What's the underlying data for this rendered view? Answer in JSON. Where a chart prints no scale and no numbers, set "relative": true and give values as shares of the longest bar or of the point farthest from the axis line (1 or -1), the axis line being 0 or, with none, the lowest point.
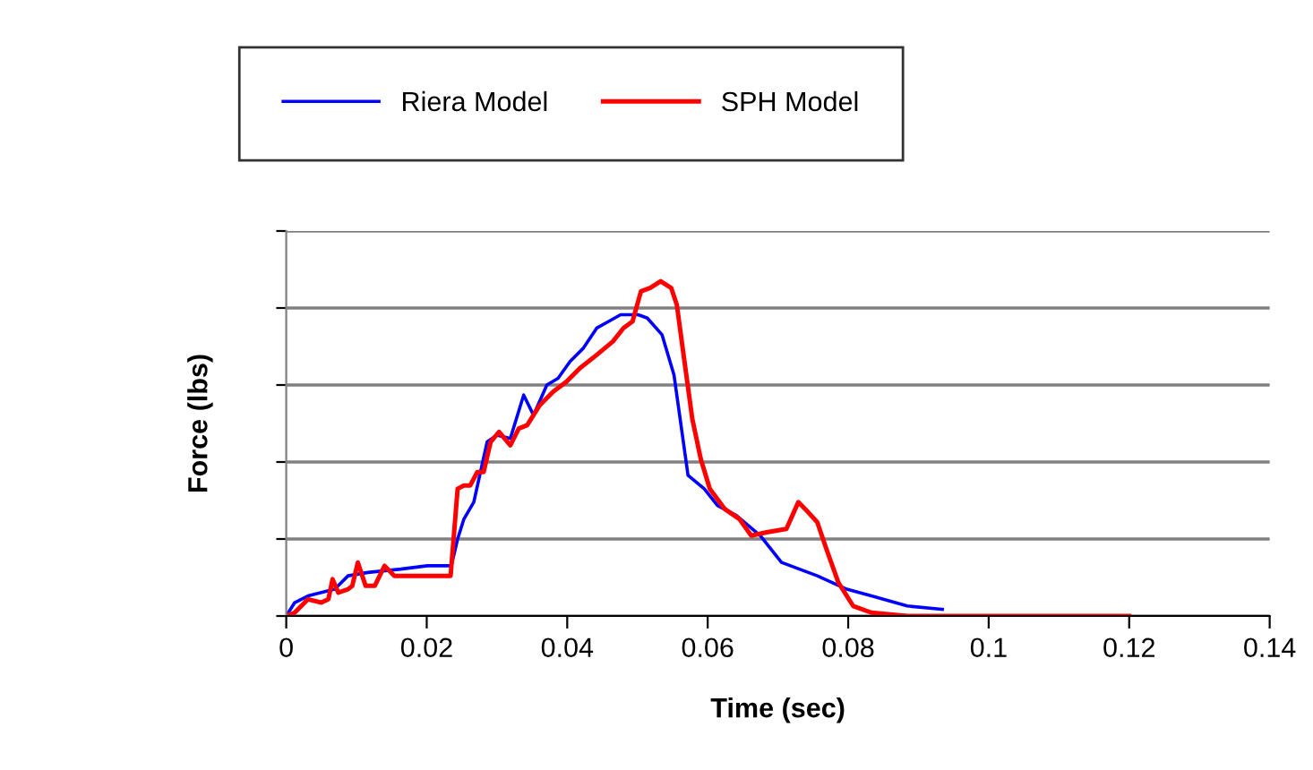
{
  "chart_data": {
    "type": "line",
    "relative": true,
    "xlabel": "Time (sec)",
    "ylabel": "Force (lbs)",
    "xlim": [
      0,
      0.14
    ],
    "xticks": [
      0,
      0.02,
      0.04,
      0.06,
      0.08,
      0.1,
      0.12,
      0.14
    ],
    "grid": "y",
    "legend": "top",
    "marker": "none",
    "line_style": "solid",
    "series": [
      {
        "name": "Riera Model",
        "color": "#0000ff",
        "x": [
          0,
          0.0012,
          0.0031,
          0.0069,
          0.0088,
          0.0116,
          0.0163,
          0.0201,
          0.0235,
          0.0244,
          0.0253,
          0.0267,
          0.0286,
          0.03,
          0.0319,
          0.0338,
          0.0352,
          0.0371,
          0.0387,
          0.0404,
          0.0423,
          0.0442,
          0.0459,
          0.0476,
          0.0501,
          0.0514,
          0.0535,
          0.0552,
          0.0572,
          0.0595,
          0.0614,
          0.0641,
          0.0675,
          0.0705,
          0.0756,
          0.0798,
          0.0833,
          0.0884,
          0.0934
        ],
        "values": [
          0,
          0.04,
          0.06,
          0.08,
          0.12,
          0.13,
          0.14,
          0.15,
          0.15,
          0.23,
          0.29,
          0.34,
          0.52,
          0.54,
          0.53,
          0.66,
          0.6,
          0.69,
          0.71,
          0.76,
          0.8,
          0.86,
          0.88,
          0.9,
          0.9,
          0.89,
          0.84,
          0.72,
          0.42,
          0.38,
          0.33,
          0.3,
          0.24,
          0.16,
          0.12,
          0.08,
          0.06,
          0.03,
          0.02
        ]
      },
      {
        "name": "SPH Model",
        "color": "#ff0000",
        "x": [
          0,
          0.0012,
          0.0031,
          0.005,
          0.006,
          0.0066,
          0.0074,
          0.0088,
          0.0094,
          0.0102,
          0.0113,
          0.0126,
          0.014,
          0.0154,
          0.0182,
          0.0211,
          0.0234,
          0.0244,
          0.0253,
          0.0262,
          0.0272,
          0.0281,
          0.0291,
          0.0303,
          0.0319,
          0.0331,
          0.0343,
          0.0361,
          0.038,
          0.0399,
          0.0418,
          0.0442,
          0.0465,
          0.048,
          0.0493,
          0.0505,
          0.0518,
          0.0533,
          0.0548,
          0.0556,
          0.0565,
          0.0578,
          0.059,
          0.0603,
          0.0624,
          0.0645,
          0.0662,
          0.0684,
          0.0712,
          0.0729,
          0.0743,
          0.0756,
          0.0769,
          0.0786,
          0.0807,
          0.0833,
          0.0884,
          0.0956,
          0.12
        ],
        "values": [
          0,
          0.01,
          0.05,
          0.04,
          0.05,
          0.11,
          0.07,
          0.08,
          0.09,
          0.16,
          0.09,
          0.09,
          0.15,
          0.12,
          0.12,
          0.12,
          0.12,
          0.38,
          0.39,
          0.39,
          0.43,
          0.43,
          0.52,
          0.55,
          0.51,
          0.56,
          0.57,
          0.63,
          0.67,
          0.7,
          0.74,
          0.78,
          0.82,
          0.86,
          0.88,
          0.97,
          0.98,
          1,
          0.98,
          0.93,
          0.79,
          0.59,
          0.47,
          0.38,
          0.32,
          0.29,
          0.24,
          0.25,
          0.26,
          0.34,
          0.31,
          0.28,
          0.2,
          0.1,
          0.03,
          0.01,
          0,
          0,
          0
        ]
      }
    ]
  }
}
